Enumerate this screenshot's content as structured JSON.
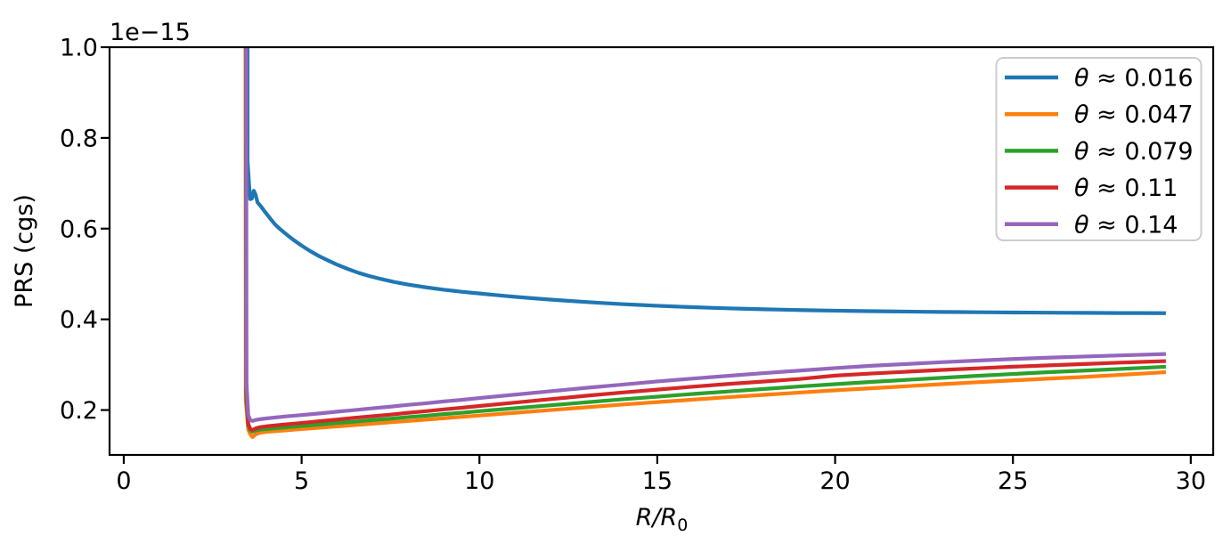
{
  "chart_data": {
    "type": "line",
    "title": "",
    "xlabel_main": "R/R",
    "xlabel_sub": "0",
    "ylabel": "PRS (cgs)",
    "offset_text": "1e−15",
    "xlim": [
      -0.4,
      30.63
    ],
    "ylim": [
      0.101,
      1.0
    ],
    "xticks": [
      0,
      5,
      10,
      15,
      20,
      25,
      30
    ],
    "yticks": [
      0.2,
      0.4,
      0.6,
      0.8,
      1.0
    ],
    "grid": false,
    "legend_position": "upper right",
    "legend_frame_color": "#cccccc",
    "axis_color": "#000000",
    "background_color": "#ffffff",
    "series": [
      {
        "name": "θ ≈ 0.016",
        "color": "#1f77b4",
        "points": [
          [
            3.48,
            1.2
          ],
          [
            3.48,
            0.75
          ],
          [
            3.52,
            0.7
          ],
          [
            3.555,
            0.665
          ],
          [
            3.6,
            0.666
          ],
          [
            3.655,
            0.6835
          ],
          [
            3.7,
            0.676
          ],
          [
            3.76,
            0.658
          ],
          [
            3.85,
            0.6495
          ],
          [
            3.95,
            0.639
          ],
          [
            4.1,
            0.624
          ],
          [
            4.25,
            0.6095
          ],
          [
            4.4,
            0.5985
          ],
          [
            4.6,
            0.5855
          ],
          [
            4.8,
            0.5735
          ],
          [
            5.0,
            0.5625
          ],
          [
            5.25,
            0.55
          ],
          [
            5.5,
            0.539
          ],
          [
            5.75,
            0.5295
          ],
          [
            6.0,
            0.5205
          ],
          [
            6.3,
            0.511
          ],
          [
            6.6,
            0.5025
          ],
          [
            6.9,
            0.4955
          ],
          [
            7.2,
            0.4895
          ],
          [
            7.6,
            0.4825
          ],
          [
            8.0,
            0.4765
          ],
          [
            8.5,
            0.4705
          ],
          [
            9.0,
            0.4652
          ],
          [
            9.5,
            0.4608
          ],
          [
            10,
            0.457
          ],
          [
            10.5,
            0.4532
          ],
          [
            11,
            0.4497
          ],
          [
            11.5,
            0.4465
          ],
          [
            12,
            0.4435
          ],
          [
            12.5,
            0.4408
          ],
          [
            13,
            0.4382
          ],
          [
            13.5,
            0.4358
          ],
          [
            14,
            0.4336
          ],
          [
            14.5,
            0.4317
          ],
          [
            15,
            0.4299
          ],
          [
            15.5,
            0.4283
          ],
          [
            16,
            0.4268
          ],
          [
            16.5,
            0.4255
          ],
          [
            17,
            0.4243
          ],
          [
            17.5,
            0.4232
          ],
          [
            18,
            0.4222
          ],
          [
            18.5,
            0.4213
          ],
          [
            19,
            0.4205
          ],
          [
            19.5,
            0.4198
          ],
          [
            20,
            0.4191
          ],
          [
            20.5,
            0.4185
          ],
          [
            21,
            0.418
          ],
          [
            21.5,
            0.4175
          ],
          [
            22,
            0.4171
          ],
          [
            22.5,
            0.4167
          ],
          [
            23,
            0.4163
          ],
          [
            23.5,
            0.416
          ],
          [
            24,
            0.4157
          ],
          [
            24.5,
            0.4154
          ],
          [
            25,
            0.4151
          ],
          [
            25.5,
            0.4149
          ],
          [
            26,
            0.4147
          ],
          [
            26.5,
            0.4145
          ],
          [
            27,
            0.4143
          ],
          [
            27.5,
            0.4141
          ],
          [
            28,
            0.4139
          ],
          [
            28.5,
            0.4138
          ],
          [
            29.3,
            0.4136
          ]
        ]
      },
      {
        "name": "θ ≈ 0.047",
        "color": "#ff7f0e",
        "points": [
          [
            3.42,
            1.2
          ],
          [
            3.43,
            0.22
          ],
          [
            3.5,
            0.157
          ],
          [
            3.56,
            0.146
          ],
          [
            3.62,
            0.1405
          ],
          [
            3.7,
            0.146
          ],
          [
            3.8,
            0.1495
          ],
          [
            4.0,
            0.152
          ],
          [
            4.5,
            0.155
          ],
          [
            5,
            0.158
          ],
          [
            5.5,
            0.161
          ],
          [
            6,
            0.164
          ],
          [
            6.5,
            0.167
          ],
          [
            7,
            0.17
          ],
          [
            7.5,
            0.173
          ],
          [
            8,
            0.176
          ],
          [
            8.5,
            0.179
          ],
          [
            9,
            0.182
          ],
          [
            9.5,
            0.185
          ],
          [
            10,
            0.188
          ],
          [
            11,
            0.194
          ],
          [
            12,
            0.2
          ],
          [
            13,
            0.206
          ],
          [
            14,
            0.212
          ],
          [
            15,
            0.2175
          ],
          [
            16,
            0.223
          ],
          [
            17,
            0.2285
          ],
          [
            18,
            0.2335
          ],
          [
            19,
            0.2385
          ],
          [
            20,
            0.2435
          ],
          [
            21,
            0.248
          ],
          [
            22,
            0.2525
          ],
          [
            23,
            0.257
          ],
          [
            24,
            0.2613
          ],
          [
            25,
            0.2654
          ],
          [
            26,
            0.2693
          ],
          [
            27,
            0.273
          ],
          [
            28,
            0.2775
          ],
          [
            29.3,
            0.2835
          ]
        ]
      },
      {
        "name": "θ ≈ 0.079",
        "color": "#2ca02c",
        "points": [
          [
            3.43,
            1.2
          ],
          [
            3.44,
            0.23
          ],
          [
            3.5,
            0.165
          ],
          [
            3.56,
            0.155
          ],
          [
            3.62,
            0.1525
          ],
          [
            3.72,
            0.1555
          ],
          [
            3.85,
            0.157
          ],
          [
            4.0,
            0.158
          ],
          [
            4.5,
            0.1615
          ],
          [
            5,
            0.165
          ],
          [
            5.5,
            0.168
          ],
          [
            6,
            0.1715
          ],
          [
            6.5,
            0.1745
          ],
          [
            7,
            0.178
          ],
          [
            7.5,
            0.181
          ],
          [
            8,
            0.1845
          ],
          [
            8.5,
            0.1875
          ],
          [
            9,
            0.191
          ],
          [
            9.5,
            0.194
          ],
          [
            10,
            0.1975
          ],
          [
            11,
            0.204
          ],
          [
            12,
            0.2105
          ],
          [
            13,
            0.217
          ],
          [
            14,
            0.2235
          ],
          [
            15,
            0.2295
          ],
          [
            16,
            0.2355
          ],
          [
            17,
            0.241
          ],
          [
            18,
            0.2465
          ],
          [
            19,
            0.252
          ],
          [
            20,
            0.257
          ],
          [
            21,
            0.262
          ],
          [
            22,
            0.2665
          ],
          [
            23,
            0.271
          ],
          [
            24,
            0.2755
          ],
          [
            25,
            0.2795
          ],
          [
            26,
            0.2835
          ],
          [
            27,
            0.287
          ],
          [
            28,
            0.2905
          ],
          [
            29.3,
            0.2955
          ]
        ]
      },
      {
        "name": "θ ≈ 0.11",
        "color": "#d62728",
        "points": [
          [
            3.435,
            1.2
          ],
          [
            3.445,
            0.24
          ],
          [
            3.5,
            0.169
          ],
          [
            3.56,
            0.158
          ],
          [
            3.62,
            0.156
          ],
          [
            3.72,
            0.16
          ],
          [
            3.85,
            0.1625
          ],
          [
            4.0,
            0.164
          ],
          [
            4.5,
            0.168
          ],
          [
            5,
            0.1715
          ],
          [
            5.5,
            0.1755
          ],
          [
            6,
            0.179
          ],
          [
            6.5,
            0.183
          ],
          [
            7,
            0.1865
          ],
          [
            7.5,
            0.19
          ],
          [
            8,
            0.194
          ],
          [
            8.5,
            0.1975
          ],
          [
            9,
            0.2015
          ],
          [
            9.5,
            0.205
          ],
          [
            10,
            0.209
          ],
          [
            11,
            0.2165
          ],
          [
            12,
            0.224
          ],
          [
            13,
            0.2315
          ],
          [
            14,
            0.2385
          ],
          [
            15,
            0.245
          ],
          [
            16,
            0.2515
          ],
          [
            17,
            0.2575
          ],
          [
            18,
            0.263
          ],
          [
            19,
            0.2685
          ],
          [
            20,
            0.276
          ],
          [
            21,
            0.2805
          ],
          [
            22,
            0.2845
          ],
          [
            23,
            0.2885
          ],
          [
            24,
            0.292
          ],
          [
            25,
            0.2955
          ],
          [
            26,
            0.2985
          ],
          [
            27,
            0.3015
          ],
          [
            28,
            0.3045
          ],
          [
            29.3,
            0.308
          ]
        ]
      },
      {
        "name": "θ ≈ 0.14",
        "color": "#9467bd",
        "points": [
          [
            3.44,
            1.2
          ],
          [
            3.45,
            0.26
          ],
          [
            3.5,
            0.188
          ],
          [
            3.56,
            0.178
          ],
          [
            3.62,
            0.176
          ],
          [
            3.72,
            0.1785
          ],
          [
            3.85,
            0.18
          ],
          [
            4.0,
            0.1815
          ],
          [
            4.5,
            0.1855
          ],
          [
            5,
            0.189
          ],
          [
            5.5,
            0.1925
          ],
          [
            6,
            0.1965
          ],
          [
            6.5,
            0.2
          ],
          [
            7,
            0.204
          ],
          [
            7.5,
            0.2075
          ],
          [
            8,
            0.2115
          ],
          [
            8.5,
            0.215
          ],
          [
            9,
            0.219
          ],
          [
            9.5,
            0.2225
          ],
          [
            10,
            0.2265
          ],
          [
            11,
            0.234
          ],
          [
            12,
            0.2415
          ],
          [
            13,
            0.249
          ],
          [
            14,
            0.256
          ],
          [
            15,
            0.263
          ],
          [
            16,
            0.2695
          ],
          [
            17,
            0.2755
          ],
          [
            18,
            0.2815
          ],
          [
            19,
            0.287
          ],
          [
            20,
            0.2925
          ],
          [
            21,
            0.2975
          ],
          [
            22,
            0.3015
          ],
          [
            23,
            0.3055
          ],
          [
            24,
            0.309
          ],
          [
            25,
            0.3125
          ],
          [
            26,
            0.3155
          ],
          [
            27,
            0.318
          ],
          [
            28,
            0.3205
          ],
          [
            29.3,
            0.3235
          ]
        ]
      }
    ]
  }
}
